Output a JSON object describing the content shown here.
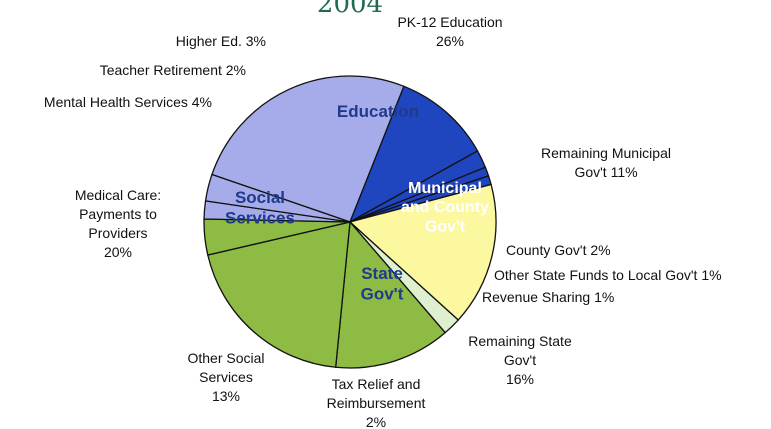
{
  "chart_data": {
    "type": "pie",
    "title_fragment": "2004",
    "slices": [
      {
        "label": [
          "PK-12 Education",
          "26%"
        ],
        "value": 26,
        "color": "#a6acea"
      },
      {
        "label": [
          "Remaining Municipal",
          "Gov't 11%"
        ],
        "value": 11,
        "color": "#1f46bf"
      },
      {
        "label": [
          "County Gov't 2%"
        ],
        "value": 2,
        "color": "#1f46bf"
      },
      {
        "label": [
          "Other State Funds to Local Gov't 1%"
        ],
        "value": 1,
        "color": "#1f46bf"
      },
      {
        "label": [
          "Revenue Sharing 1%"
        ],
        "value": 1,
        "color": "#1f46bf"
      },
      {
        "label": [
          "Remaining State",
          "Gov't",
          "16%"
        ],
        "value": 16,
        "color": "#fbf8a0"
      },
      {
        "label": [
          "Tax Relief and",
          "Reimbursement",
          "2%"
        ],
        "value": 2,
        "color": "#dff0cf"
      },
      {
        "label": [
          "Other Social",
          "Services",
          "13%"
        ],
        "value": 13,
        "color": "#8dbb43"
      },
      {
        "label": [
          "Medical Care:",
          "Payments to",
          "Providers",
          "20%"
        ],
        "value": 20,
        "color": "#8dbb43"
      },
      {
        "label": [
          "Mental Health Services 4%"
        ],
        "value": 4,
        "color": "#8dbb43"
      },
      {
        "label": [
          "Teacher Retirement 2%"
        ],
        "value": 2,
        "color": "#a6acea"
      },
      {
        "label": [
          "Higher Ed. 3%"
        ],
        "value": 3,
        "color": "#a6acea"
      }
    ],
    "groups": [
      {
        "label": [
          "Education"
        ],
        "color": "#203a8c"
      },
      {
        "label": [
          "Municipal",
          "and County",
          "Gov't"
        ],
        "color": "#ffffff"
      },
      {
        "label": [
          "State",
          "Gov't"
        ],
        "color": "#203a8c"
      },
      {
        "label": [
          "Social",
          "Services"
        ],
        "color": "#203a8c"
      }
    ]
  }
}
